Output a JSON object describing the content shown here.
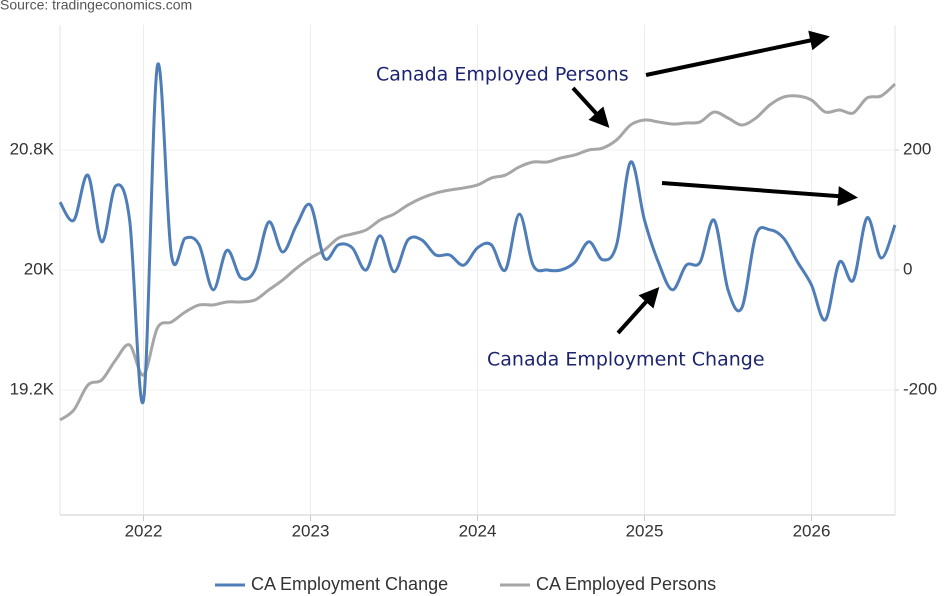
{
  "chart_data": {
    "type": "line",
    "source": "Source: tradingeconomics.com",
    "annotations": [
      "Canada Employed Persons",
      "Canada Employment Change"
    ],
    "x": [
      2021.5,
      2021.583,
      2021.667,
      2021.75,
      2021.833,
      2021.917,
      2022,
      2022.083,
      2022.167,
      2022.25,
      2022.333,
      2022.417,
      2022.5,
      2022.583,
      2022.667,
      2022.75,
      2022.833,
      2022.917,
      2023,
      2023.083,
      2023.167,
      2023.25,
      2023.333,
      2023.417,
      2023.5,
      2023.583,
      2023.667,
      2023.75,
      2023.833,
      2023.917,
      2024,
      2024.083,
      2024.167,
      2024.25,
      2024.333,
      2024.417,
      2024.5,
      2024.583,
      2024.667,
      2024.75,
      2024.833,
      2024.917,
      2025,
      2025.083,
      2025.167,
      2025.25,
      2025.333,
      2025.417,
      2025.5,
      2025.583,
      2025.667,
      2025.75,
      2025.833,
      2025.917,
      2026,
      2026.083,
      2026.167,
      2026.25,
      2026.333,
      2026.417,
      2026.5
    ],
    "series": [
      {
        "name": "CA Employment Change",
        "color": "#4f7db8",
        "axis": "y2",
        "values": [
          113,
          83,
          158,
          47,
          140,
          83,
          -217,
          340,
          25,
          53,
          42,
          -33,
          33,
          -13,
          0,
          80,
          30,
          75,
          108,
          20,
          42,
          37,
          0,
          57,
          -3,
          50,
          50,
          25,
          25,
          8,
          37,
          42,
          0,
          93,
          8,
          0,
          0,
          13,
          47,
          17,
          42,
          180,
          83,
          13,
          -33,
          8,
          13,
          83,
          -33,
          -63,
          58,
          67,
          53,
          13,
          -25,
          -83,
          13,
          -17,
          87,
          20,
          75
        ]
      },
      {
        "name": "CA Employed Persons",
        "color": "#a6a6a6",
        "axis": "y",
        "values": [
          19000,
          19067,
          19233,
          19267,
          19400,
          19500,
          19300,
          19613,
          19653,
          19720,
          19767,
          19767,
          19787,
          19787,
          19800,
          19867,
          19933,
          20013,
          20080,
          20133,
          20213,
          20240,
          20267,
          20333,
          20373,
          20433,
          20480,
          20513,
          20533,
          20547,
          20567,
          20613,
          20633,
          20687,
          20720,
          20720,
          20747,
          20767,
          20800,
          20813,
          20867,
          20967,
          21000,
          20987,
          20973,
          20980,
          20987,
          21053,
          21013,
          20967,
          21013,
          21100,
          21153,
          21160,
          21133,
          21053,
          21067,
          21047,
          21147,
          21160,
          21240
        ]
      }
    ],
    "xlim": [
      2021.5,
      2026.5
    ],
    "xticks": [
      2022,
      2023,
      2024,
      2025,
      2026
    ],
    "ylim": [
      18366.7,
      21633.3
    ],
    "yticks": [
      {
        "value": 19200,
        "label": "19.2K"
      },
      {
        "value": 20000,
        "label": "20K"
      },
      {
        "value": 20800,
        "label": "20.8K"
      }
    ],
    "y2lim": [
      -408.3,
      408.3
    ],
    "y2ticks": [
      -200,
      0,
      200
    ],
    "grid": true,
    "legend": "bottom"
  }
}
